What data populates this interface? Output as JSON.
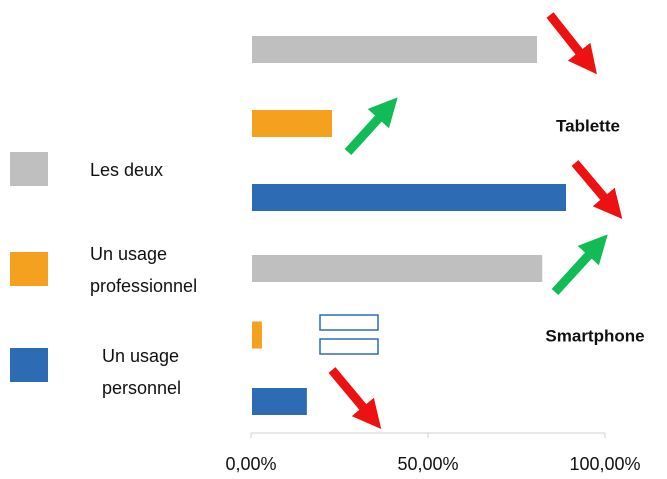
{
  "chart_data": {
    "type": "bar",
    "orientation": "horizontal",
    "categories": [
      "Tablette",
      "Smartphone"
    ],
    "series": [
      {
        "name": "Les deux",
        "color": "#bfbfbf",
        "values": [
          80.5,
          82
        ]
      },
      {
        "name": "Un usage professionnel",
        "color": "#f4a11f",
        "values": [
          22.6,
          2.8
        ]
      },
      {
        "name": "Un usage personnel",
        "color": "#2e6bb5",
        "values": [
          88.7,
          15.5
        ]
      }
    ],
    "xlim": [
      0,
      100
    ],
    "xticks": [
      {
        "value": 0,
        "label": "0,00%"
      },
      {
        "value": 50,
        "label": "50,00%"
      },
      {
        "value": 100,
        "label": "100,00%"
      }
    ],
    "legend": "left"
  }
}
